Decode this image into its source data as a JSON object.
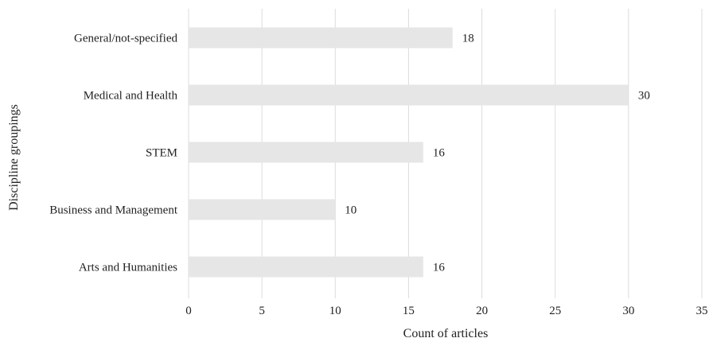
{
  "chart_data": {
    "type": "bar",
    "orientation": "horizontal",
    "categories": [
      "General/not-specified",
      "Medical and Health",
      "STEM",
      "Business and Management",
      "Arts and Humanities"
    ],
    "values": [
      18,
      30,
      16,
      10,
      16
    ],
    "xlabel": "Count of articles",
    "ylabel": "Discipline groupings",
    "xlim": [
      0,
      35
    ],
    "xticks": [
      "0",
      "5",
      "10",
      "15",
      "20",
      "25",
      "30",
      "35"
    ],
    "grid": "vertical",
    "bar_color": "#e6e6e6",
    "grid_color": "#dcdcdc"
  }
}
